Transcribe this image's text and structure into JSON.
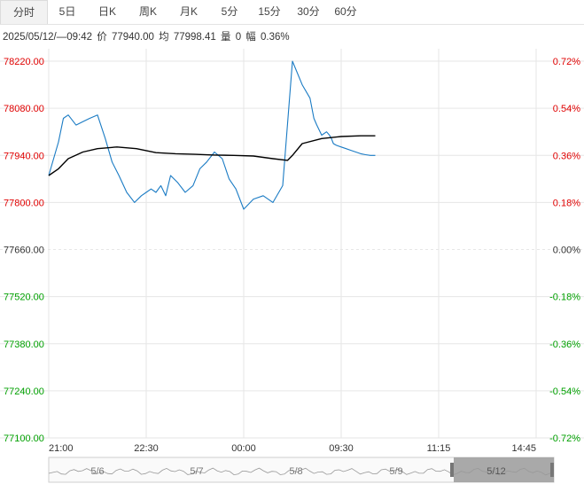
{
  "tabs": [
    {
      "label": "分时",
      "active": true
    },
    {
      "label": "5日",
      "active": false
    },
    {
      "label": "日K",
      "active": false
    },
    {
      "label": "周K",
      "active": false
    },
    {
      "label": "月K",
      "active": false
    },
    {
      "label": "5分",
      "active": false
    },
    {
      "label": "15分",
      "active": false
    },
    {
      "label": "30分",
      "active": false
    },
    {
      "label": "60分",
      "active": false
    }
  ],
  "info": {
    "datetime": "2025/05/12/—09:42",
    "price_label": "价",
    "price": "77940.00",
    "avg_label": "均",
    "avg": "77998.41",
    "volume_label": "量",
    "volume": "0",
    "change_label": "幅",
    "change": "0.36%"
  },
  "colors": {
    "up": "#e00000",
    "down": "#00a000",
    "neutral": "#333333",
    "price_line": "#1a7bc4",
    "avg_line": "#000000",
    "grid": "#e6e6e6"
  },
  "chart_data": {
    "type": "line",
    "base_price": 77660.0,
    "ylim": [
      77100.0,
      78220.0
    ],
    "y_ticks_left": [
      "78220.00",
      "78080.00",
      "77940.00",
      "77800.00",
      "77660.00",
      "77520.00",
      "77380.00",
      "77240.00",
      "77100.00"
    ],
    "y_ticks_right": [
      "0.72%",
      "0.54%",
      "0.36%",
      "0.18%",
      "0.00%",
      "-0.18%",
      "-0.36%",
      "-0.54%",
      "-0.72%"
    ],
    "x_ticks": [
      "21:00",
      "22:30",
      "00:00",
      "09:30",
      "11:15",
      "14:45"
    ],
    "x_tick_positions": [
      0,
      1,
      2,
      3,
      4,
      5
    ],
    "series": [
      {
        "kind": "price",
        "x": [
          0.0,
          0.05,
          0.1,
          0.15,
          0.2,
          0.28,
          0.35,
          0.42,
          0.5,
          0.58,
          0.65,
          0.72,
          0.8,
          0.88,
          0.95,
          1.0,
          1.05,
          1.1,
          1.15,
          1.2,
          1.25,
          1.32,
          1.4,
          1.48,
          1.55,
          1.62,
          1.7,
          1.78,
          1.85,
          1.92,
          2.0,
          2.1,
          2.2,
          2.3,
          2.4,
          2.5,
          2.6,
          2.68,
          2.72,
          2.75,
          2.8,
          2.85,
          2.88,
          2.9,
          2.92,
          2.95,
          3.0,
          3.05,
          3.1,
          3.15,
          3.2,
          3.25,
          3.3,
          3.35
        ],
        "y": [
          77880,
          77930,
          77980,
          78050,
          78060,
          78030,
          78040,
          78050,
          78060,
          77990,
          77920,
          77880,
          77830,
          77800,
          77820,
          77830,
          77840,
          77830,
          77850,
          77820,
          77880,
          77860,
          77830,
          77850,
          77900,
          77920,
          77950,
          77930,
          77870,
          77840,
          77780,
          77810,
          77820,
          77800,
          77850,
          78220,
          78150,
          78110,
          78050,
          78030,
          78000,
          78010,
          78000,
          77990,
          77975,
          77970,
          77965,
          77960,
          77955,
          77950,
          77945,
          77942,
          77940,
          77940
        ]
      },
      {
        "kind": "average",
        "x": [
          0.0,
          0.1,
          0.2,
          0.35,
          0.5,
          0.7,
          0.9,
          1.1,
          1.3,
          1.5,
          1.7,
          1.9,
          2.1,
          2.3,
          2.45,
          2.5,
          2.6,
          2.8,
          3.0,
          3.2,
          3.35
        ],
        "y": [
          77880,
          77900,
          77930,
          77950,
          77960,
          77965,
          77960,
          77948,
          77945,
          77943,
          77941,
          77940,
          77938,
          77930,
          77925,
          77940,
          77975,
          77990,
          77996,
          77998,
          77998
        ]
      }
    ],
    "navigator": {
      "labels": [
        "5/6",
        "5/7",
        "5/8",
        "5/9",
        "5/12"
      ],
      "selected_label": "5/12"
    }
  }
}
